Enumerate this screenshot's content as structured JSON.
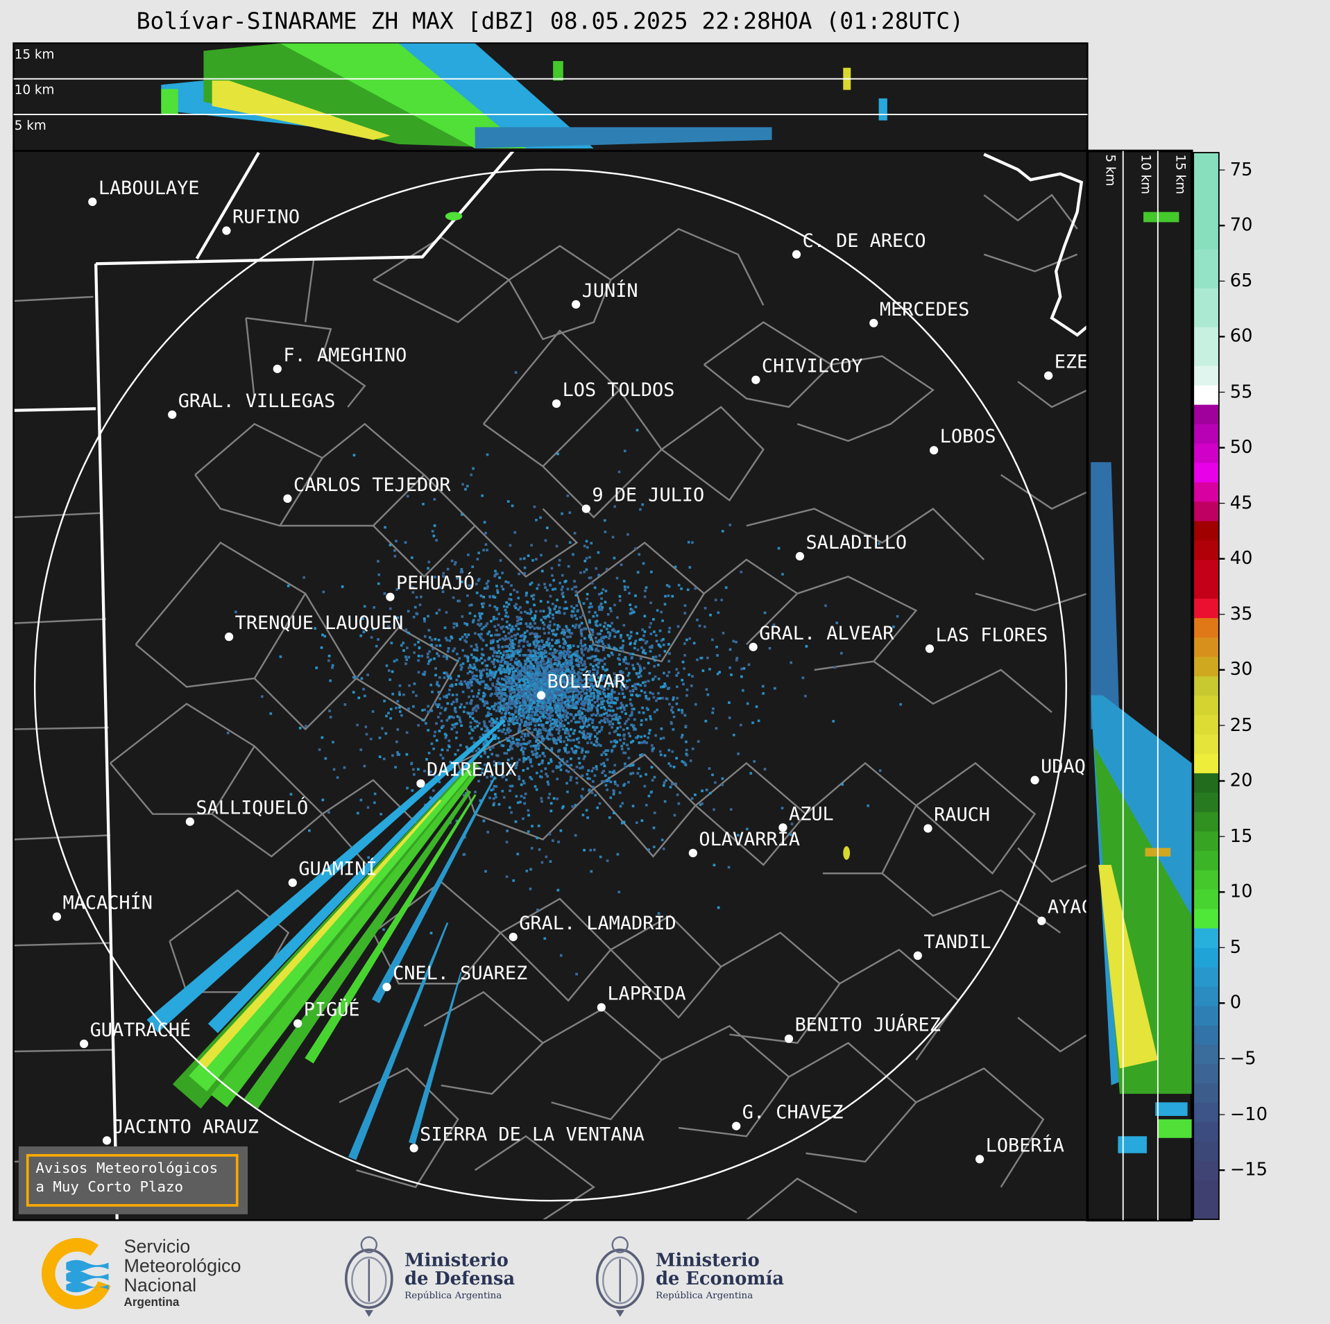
{
  "title": "Bolívar-SINARAME ZH MAX [dBZ] 08.05.2025 22:28HOA (01:28UTC)",
  "top_panel": {
    "height_labels": [
      "15 km",
      "10 km",
      "5 km"
    ]
  },
  "side_panel": {
    "height_labels": [
      "5 km",
      "10 km",
      "15 km"
    ]
  },
  "radar_center": "BOLÍVAR",
  "cities": [
    "LABOULAYE",
    "RUFINO",
    "C. DE ARECO",
    "JUNÍN",
    "MERCEDES",
    "F. AMEGHINO",
    "CHIVILCOY",
    "EZEIZA",
    "GRAL. VILLEGAS",
    "LOS TOLDOS",
    "LOBOS",
    "CARLOS TEJEDOR",
    "9 DE JULIO",
    "SALADILLO",
    "PEHUAJÓ",
    "TRENQUE LAUQUEN",
    "GRAL. ALVEAR",
    "LAS FLORES",
    "BOLÍVAR",
    "DAIREAUX",
    "UDAQUIOLA",
    "SALLIQUELÓ",
    "AZUL",
    "RAUCH",
    "OLAVARRÍA",
    "GUAMINÍ",
    "MACACHÍN",
    "AYACUCHO",
    "GRAL. LAMADRID",
    "TANDIL",
    "CNEL. SUAREZ",
    "LAPRIDA",
    "PIGÜÉ",
    "BENITO JUÁREZ",
    "GUATRACHÉ",
    "G. CHAVEZ",
    "JACINTO ARAUZ",
    "SIERRA DE LA VENTANA",
    "LOBERÍA"
  ],
  "colorbar": {
    "unit": "dBZ",
    "range": [
      -19.5,
      76.5
    ],
    "ticks": [
      "75",
      "70",
      "65",
      "60",
      "55",
      "50",
      "45",
      "40",
      "35",
      "30",
      "25",
      "20",
      "15",
      "10",
      "5",
      "0",
      "−5",
      "−10",
      "−15"
    ],
    "colors": [
      "#87dfbd",
      "#87dfbd",
      "#87dfbd",
      "#87dfbd",
      "#87dfbd",
      "#95e3c7",
      "#95e3c7",
      "#ace9d3",
      "#ace9d3",
      "#c7f0e1",
      "#c7f0e1",
      "#e0f5ed",
      "#ffffff",
      "#a0009c",
      "#b800b4",
      "#d000c8",
      "#e800e8",
      "#d800a0",
      "#c00060",
      "#a00000",
      "#b00008",
      "#c40018",
      "#c40018",
      "#ec1030",
      "#e07818",
      "#d8901c",
      "#d0a820",
      "#c8c830",
      "#d4d430",
      "#dcdc34",
      "#e4e43a",
      "#eeee3a",
      "#226c1e",
      "#287a20",
      "#309020",
      "#38a424",
      "#3cb428",
      "#44c82c",
      "#48d430",
      "#50e838",
      "#28b0dc",
      "#20a4d8",
      "#2898cc",
      "#2a8cc0",
      "#2e80b4",
      "#3274a8",
      "#3a6c9c",
      "#3c6494",
      "#3c5c8c",
      "#3c5488",
      "#3c4c80",
      "#3c4878",
      "#404474",
      "#404070",
      "#404070"
    ]
  },
  "notice": {
    "line1": "Avisos Meteorológicos",
    "line2": "a Muy Corto Plazo"
  },
  "logos": {
    "smn": {
      "line1": "Servicio",
      "line2": "Meteorológico",
      "line3": "Nacional",
      "line4": "Argentina"
    },
    "defensa": {
      "line1": "Ministerio",
      "line2": "de Defensa",
      "line3": "República Argentina"
    },
    "economia": {
      "line1": "Ministerio",
      "line2": "de Economía",
      "line3": "República Argentina"
    }
  },
  "colors": {
    "background": "#e6e6e6",
    "map": "#1a1a1a",
    "notice_border": "#f9a800"
  }
}
